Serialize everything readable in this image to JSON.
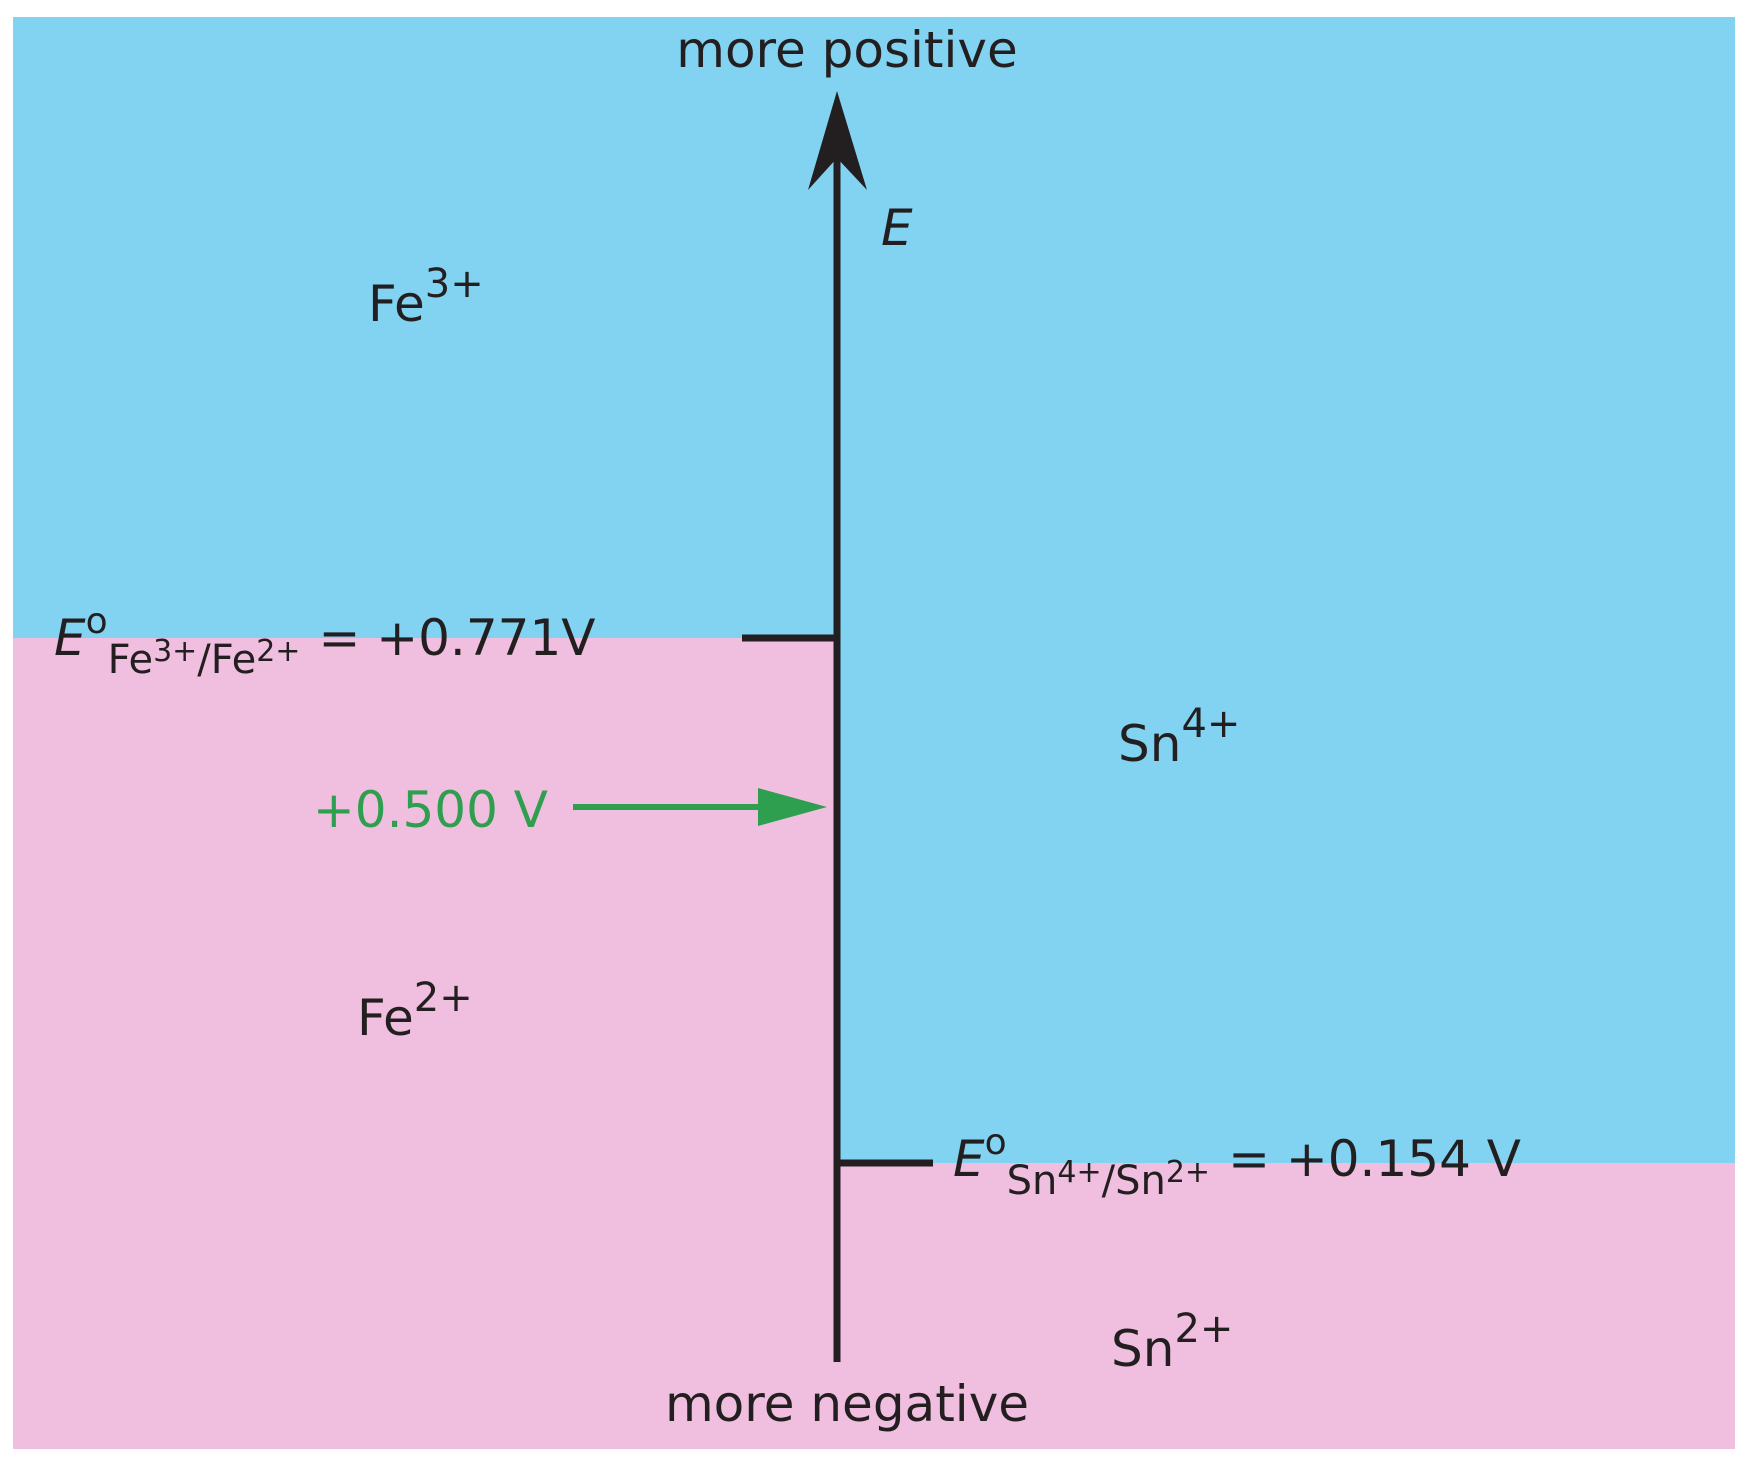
{
  "axis": {
    "top_label": "more positive",
    "bottom_label": "more negative",
    "symbol": "E"
  },
  "species": {
    "fe3": {
      "symbol": "Fe",
      "charge": "3+"
    },
    "fe2": {
      "symbol": "Fe",
      "charge": "2+"
    },
    "sn4": {
      "symbol": "Sn",
      "charge": "4+"
    },
    "sn2": {
      "symbol": "Sn",
      "charge": "2+"
    }
  },
  "potentials": {
    "fe": {
      "symbol": "E",
      "superscript": "o",
      "subscript": [
        "Fe",
        "3+",
        "/Fe",
        "2+"
      ],
      "value": "= +0.771V"
    },
    "sn": {
      "symbol": "E",
      "superscript": "o",
      "subscript": [
        "Sn",
        "4+",
        "/Sn",
        "2+"
      ],
      "value": "= +0.154 V"
    }
  },
  "applied": {
    "label": "+0.500 V"
  }
}
